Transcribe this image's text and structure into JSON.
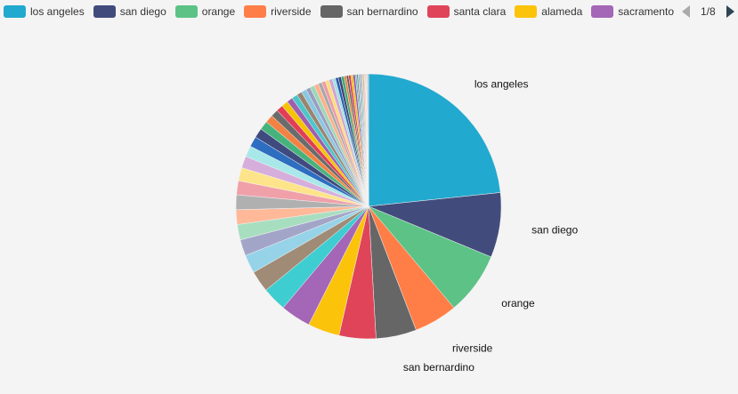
{
  "legend": {
    "items": [
      {
        "label": "los angeles",
        "color": "#22a9cf"
      },
      {
        "label": "san diego",
        "color": "#424c7c"
      },
      {
        "label": "orange",
        "color": "#5cc286"
      },
      {
        "label": "riverside",
        "color": "#ff7e47"
      },
      {
        "label": "san bernardino",
        "color": "#666666"
      },
      {
        "label": "santa clara",
        "color": "#e04459"
      },
      {
        "label": "alameda",
        "color": "#fcc30b"
      },
      {
        "label": "sacramento",
        "color": "#a466b6"
      }
    ],
    "page": "1/8"
  },
  "chart_data": {
    "type": "pie",
    "labeled_slices": [
      "los angeles",
      "san diego",
      "orange",
      "riverside",
      "san bernardino"
    ],
    "values": [
      26.0,
      8.8,
      8.5,
      5.9,
      5.5,
      5.0,
      4.3,
      4.1,
      3.3,
      2.9,
      2.5,
      2.2,
      2.1,
      2.0,
      2.0,
      1.9,
      1.8,
      1.6,
      1.5,
      1.4,
      1.3,
      1.2,
      1.1,
      1.0,
      0.9,
      0.9,
      0.8,
      0.8,
      0.7,
      0.7,
      0.6,
      0.6,
      0.6,
      0.5,
      0.5,
      0.5,
      0.5,
      0.4,
      0.4,
      0.4,
      0.4,
      0.3,
      0.3,
      0.3,
      0.3,
      0.3,
      0.2,
      0.2,
      0.2,
      0.2,
      0.2,
      0.2,
      0.1,
      0.1,
      0.1,
      0.1,
      0.1,
      0.1
    ],
    "colors": [
      "#22a9cf",
      "#424c7c",
      "#5cc286",
      "#ff7e47",
      "#666666",
      "#e04459",
      "#fcc30b",
      "#a466b6",
      "#3ecdd0",
      "#a08b76",
      "#96d3e8",
      "#a3a5c8",
      "#a8dec0",
      "#ffb999",
      "#b0b0b0",
      "#f0a0a9",
      "#fde48a",
      "#d6aedb",
      "#a9e8e9",
      "#2d6ec0",
      "#3f4a7f",
      "#47b37c",
      "#f28243",
      "#6b6b6b",
      "#e33d55",
      "#f4c400",
      "#9e5fb0",
      "#4cc6c9",
      "#998470",
      "#88c8e0",
      "#9a9dc2",
      "#9ed8b6",
      "#ffb08c",
      "#a8a8a8",
      "#f09aa4",
      "#fddd7a",
      "#cfa4d5",
      "#9fe1e2",
      "#285fae",
      "#3a4578",
      "#3faa73",
      "#ee7a3a",
      "#5f5f5f",
      "#dd3550",
      "#f0bd00",
      "#9855aa",
      "#44c0c3",
      "#927d69",
      "#80c1da",
      "#9396bd",
      "#95d2ae",
      "#ffa982",
      "#a2a2a2",
      "#ec939e",
      "#fcd870",
      "#c99cd0",
      "#96dcdd",
      "#2a64b0"
    ]
  }
}
